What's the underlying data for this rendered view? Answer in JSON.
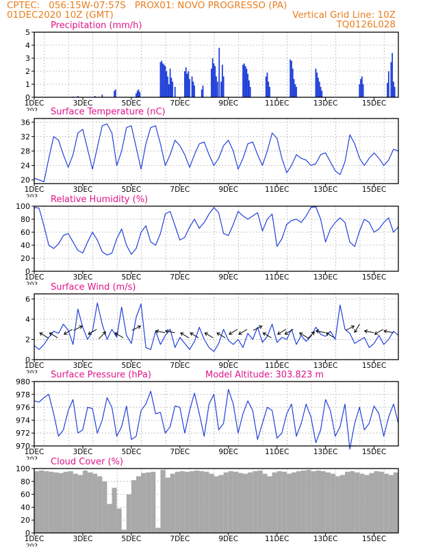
{
  "header": {
    "line1_left": "CPTEC:   056:15W-07:57S   PROX01: NOVO PROGRESSO (PA)",
    "line2_left": "01DEC2020 10Z (GMT)",
    "line2_right": "Vertical Grid Line: 10Z",
    "line3_right": "TQ0126L028",
    "model_altitude": "Model Altitude: 303.823 m"
  },
  "colors": {
    "header": "#e87d1e",
    "title": "#e0148a",
    "series": "#1f3fd8",
    "bars": "#1f3fd8",
    "cloud": "#a9a9a9",
    "grid": "#9a9a9a"
  },
  "x_axis": {
    "start_day": 1,
    "end_day": 16,
    "ticks": [
      {
        "day": 1,
        "label": "1DEC"
      },
      {
        "day": 3,
        "label": "3DEC"
      },
      {
        "day": 5,
        "label": "5DEC"
      },
      {
        "day": 7,
        "label": "7DEC"
      },
      {
        "day": 9,
        "label": "9DEC"
      },
      {
        "day": 11,
        "label": "11DEC"
      },
      {
        "day": 13,
        "label": "13DEC"
      },
      {
        "day": 15,
        "label": "15DEC"
      }
    ],
    "year_stub": "202"
  },
  "chart_data": [
    {
      "id": "precip",
      "type": "bar",
      "title": "Precipitation (mm/h)",
      "ylim": [
        0,
        5
      ],
      "yticks": [
        0,
        1,
        2,
        3,
        4,
        5
      ],
      "x_unit": "day of December",
      "bars": [
        [
          2.6,
          0.05
        ],
        [
          2.8,
          0.1
        ],
        [
          3.5,
          0.1
        ],
        [
          3.8,
          0.2
        ],
        [
          4.3,
          0.5
        ],
        [
          4.35,
          0.6
        ],
        [
          5.2,
          0.3
        ],
        [
          5.25,
          0.5
        ],
        [
          5.3,
          0.6
        ],
        [
          5.35,
          0.4
        ],
        [
          6.2,
          2.7
        ],
        [
          6.25,
          2.8
        ],
        [
          6.3,
          2.6
        ],
        [
          6.35,
          2.5
        ],
        [
          6.4,
          2.4
        ],
        [
          6.45,
          2.0
        ],
        [
          6.5,
          1.6
        ],
        [
          6.55,
          1.0
        ],
        [
          6.6,
          2.2
        ],
        [
          6.65,
          1.5
        ],
        [
          6.7,
          1.2
        ],
        [
          6.8,
          0.8
        ],
        [
          7.2,
          2.0
        ],
        [
          7.25,
          2.3
        ],
        [
          7.3,
          1.8
        ],
        [
          7.35,
          2.0
        ],
        [
          7.4,
          1.4
        ],
        [
          7.5,
          1.6
        ],
        [
          7.55,
          1.2
        ],
        [
          7.6,
          0.9
        ],
        [
          7.9,
          0.6
        ],
        [
          7.95,
          0.9
        ],
        [
          8.3,
          2.2
        ],
        [
          8.35,
          3.0
        ],
        [
          8.4,
          2.6
        ],
        [
          8.45,
          2.4
        ],
        [
          8.5,
          1.6
        ],
        [
          8.55,
          1.2
        ],
        [
          8.62,
          3.8
        ],
        [
          8.7,
          1.2
        ],
        [
          8.75,
          2.5
        ],
        [
          8.8,
          1.6
        ],
        [
          9.6,
          2.5
        ],
        [
          9.65,
          2.6
        ],
        [
          9.7,
          2.4
        ],
        [
          9.75,
          2.2
        ],
        [
          9.8,
          1.8
        ],
        [
          9.85,
          1.3
        ],
        [
          9.9,
          0.8
        ],
        [
          10.55,
          1.6
        ],
        [
          10.6,
          1.9
        ],
        [
          10.65,
          1.2
        ],
        [
          10.7,
          0.8
        ],
        [
          11.55,
          2.9
        ],
        [
          11.6,
          2.8
        ],
        [
          11.65,
          2.2
        ],
        [
          11.7,
          1.4
        ],
        [
          11.75,
          1.0
        ],
        [
          11.8,
          0.8
        ],
        [
          12.6,
          2.2
        ],
        [
          12.65,
          1.9
        ],
        [
          12.7,
          1.5
        ],
        [
          12.75,
          1.2
        ],
        [
          12.8,
          0.8
        ],
        [
          12.85,
          0.5
        ],
        [
          14.4,
          1.0
        ],
        [
          14.45,
          1.4
        ],
        [
          14.5,
          1.6
        ],
        [
          14.55,
          1.0
        ],
        [
          15.55,
          1.1
        ],
        [
          15.6,
          2.0
        ],
        [
          15.7,
          2.7
        ],
        [
          15.75,
          3.4
        ],
        [
          15.8,
          1.2
        ],
        [
          15.85,
          0.8
        ]
      ]
    },
    {
      "id": "temp",
      "type": "line",
      "title": "Surface Temperature (nC)",
      "ylim": [
        19,
        37
      ],
      "yticks": [
        20,
        24,
        28,
        32,
        36
      ],
      "x": [
        1.0,
        1.2,
        1.4,
        1.6,
        1.8,
        2.0,
        2.2,
        2.4,
        2.6,
        2.8,
        3.0,
        3.2,
        3.4,
        3.6,
        3.8,
        4.0,
        4.2,
        4.4,
        4.6,
        4.8,
        5.0,
        5.2,
        5.4,
        5.6,
        5.8,
        6.0,
        6.2,
        6.4,
        6.6,
        6.8,
        7.0,
        7.2,
        7.4,
        7.6,
        7.8,
        8.0,
        8.2,
        8.4,
        8.6,
        8.8,
        9.0,
        9.2,
        9.4,
        9.6,
        9.8,
        10.0,
        10.2,
        10.4,
        10.6,
        10.8,
        11.0,
        11.2,
        11.4,
        11.6,
        11.8,
        12.0,
        12.2,
        12.4,
        12.6,
        12.8,
        13.0,
        13.2,
        13.4,
        13.6,
        13.8,
        14.0,
        14.2,
        14.4,
        14.6,
        14.8,
        15.0,
        15.2,
        15.4,
        15.6,
        15.8,
        16.0
      ],
      "values": [
        20.5,
        20.0,
        19.5,
        26.0,
        32.0,
        31.0,
        27.0,
        23.5,
        27.0,
        33.0,
        34.0,
        28.5,
        23.0,
        29.0,
        35.0,
        35.5,
        33.0,
        24.0,
        28.0,
        34.5,
        35.0,
        29.0,
        23.0,
        30.0,
        34.5,
        35.0,
        30.0,
        24.0,
        27.0,
        31.0,
        29.5,
        27.0,
        23.5,
        27.0,
        30.0,
        30.5,
        27.0,
        24.0,
        26.0,
        29.5,
        31.0,
        28.0,
        23.0,
        26.0,
        30.0,
        30.5,
        27.0,
        24.0,
        28.0,
        33.0,
        31.5,
        26.0,
        22.0,
        24.0,
        27.0,
        26.0,
        25.5,
        24.0,
        24.5,
        27.0,
        27.5,
        25.0,
        22.5,
        21.5,
        25.0,
        32.5,
        30.0,
        26.0,
        24.0,
        26.0,
        27.5,
        26.0,
        24.0,
        25.5,
        28.5,
        28.0
      ]
    },
    {
      "id": "rh",
      "type": "line",
      "title": "Relative Humidity (%)",
      "ylim": [
        0,
        100
      ],
      "yticks": [
        0,
        20,
        40,
        60,
        80,
        100
      ],
      "x": [
        1.0,
        1.2,
        1.4,
        1.6,
        1.8,
        2.0,
        2.2,
        2.4,
        2.6,
        2.8,
        3.0,
        3.2,
        3.4,
        3.6,
        3.8,
        4.0,
        4.2,
        4.4,
        4.6,
        4.8,
        5.0,
        5.2,
        5.4,
        5.6,
        5.8,
        6.0,
        6.2,
        6.4,
        6.6,
        6.8,
        7.0,
        7.2,
        7.4,
        7.6,
        7.8,
        8.0,
        8.2,
        8.4,
        8.6,
        8.8,
        9.0,
        9.2,
        9.4,
        9.6,
        9.8,
        10.0,
        10.2,
        10.4,
        10.6,
        10.8,
        11.0,
        11.2,
        11.4,
        11.6,
        11.8,
        12.0,
        12.2,
        12.4,
        12.6,
        12.8,
        13.0,
        13.2,
        13.4,
        13.6,
        13.8,
        14.0,
        14.2,
        14.4,
        14.6,
        14.8,
        15.0,
        15.2,
        15.4,
        15.6,
        15.8,
        16.0
      ],
      "values": [
        98.0,
        97.0,
        70.0,
        40.0,
        35.0,
        42.0,
        55.0,
        58.0,
        45.0,
        32.0,
        28.0,
        45.0,
        60.0,
        48.0,
        30.0,
        25.0,
        28.0,
        50.0,
        65.0,
        40.0,
        26.0,
        35.0,
        60.0,
        70.0,
        45.0,
        40.0,
        58.0,
        88.0,
        92.0,
        70.0,
        48.0,
        52.0,
        68.0,
        80.0,
        66.0,
        75.0,
        88.0,
        98.0,
        90.0,
        58.0,
        55.0,
        72.0,
        92.0,
        85.0,
        80.0,
        85.0,
        90.0,
        62.0,
        80.0,
        88.0,
        38.0,
        50.0,
        72.0,
        78.0,
        80.0,
        75.0,
        85.0,
        98.0,
        99.0,
        80.0,
        45.0,
        65.0,
        75.0,
        82.0,
        75.0,
        45.0,
        38.0,
        62.0,
        80.0,
        75.0,
        60.0,
        65.0,
        75.0,
        82.0,
        60.0,
        68.0
      ]
    },
    {
      "id": "wind",
      "type": "line",
      "title": "Surface Wind (m/s)",
      "ylim": [
        0,
        6.5
      ],
      "yticks": [
        0,
        2,
        4,
        6
      ],
      "x": [
        1.0,
        1.2,
        1.4,
        1.6,
        1.8,
        2.0,
        2.2,
        2.4,
        2.6,
        2.8,
        3.0,
        3.2,
        3.4,
        3.6,
        3.8,
        4.0,
        4.2,
        4.4,
        4.6,
        4.8,
        5.0,
        5.2,
        5.4,
        5.6,
        5.8,
        6.0,
        6.2,
        6.4,
        6.6,
        6.8,
        7.0,
        7.2,
        7.4,
        7.6,
        7.8,
        8.0,
        8.2,
        8.4,
        8.6,
        8.8,
        9.0,
        9.2,
        9.4,
        9.6,
        9.8,
        10.0,
        10.2,
        10.4,
        10.6,
        10.8,
        11.0,
        11.2,
        11.4,
        11.6,
        11.8,
        12.0,
        12.2,
        12.4,
        12.6,
        12.8,
        13.0,
        13.2,
        13.4,
        13.6,
        13.8,
        14.0,
        14.2,
        14.4,
        14.6,
        14.8,
        15.0,
        15.2,
        15.4,
        15.6,
        15.8,
        16.0
      ],
      "values": [
        1.4,
        1.0,
        1.5,
        2.2,
        2.8,
        2.6,
        3.5,
        2.9,
        1.5,
        5.0,
        3.2,
        2.0,
        2.8,
        5.6,
        3.5,
        2.0,
        3.0,
        2.2,
        5.2,
        2.4,
        1.6,
        4.2,
        5.5,
        1.2,
        1.0,
        2.8,
        1.5,
        2.4,
        3.0,
        1.2,
        2.2,
        1.6,
        1.0,
        1.8,
        3.2,
        2.0,
        1.2,
        0.8,
        1.6,
        3.0,
        1.9,
        1.5,
        2.0,
        1.2,
        2.6,
        2.0,
        3.2,
        1.7,
        2.3,
        3.5,
        1.7,
        2.2,
        2.0,
        3.0,
        1.5,
        2.4,
        1.8,
        2.3,
        3.2,
        2.5,
        2.3,
        2.8,
        2.0,
        5.4,
        3.0,
        2.6,
        1.6,
        1.9,
        2.2,
        1.2,
        1.6,
        2.4,
        1.5,
        2.0,
        2.8,
        2.4
      ],
      "arrows": [
        [
          1.4,
          0
        ],
        [
          1.8,
          0
        ],
        [
          2.4,
          1
        ],
        [
          2.8,
          2
        ],
        [
          3.4,
          1
        ],
        [
          3.8,
          3
        ],
        [
          4.5,
          0
        ],
        [
          5.2,
          2
        ],
        [
          6.2,
          4
        ],
        [
          6.6,
          4
        ],
        [
          7.2,
          0
        ],
        [
          7.6,
          0
        ],
        [
          8.2,
          0
        ],
        [
          8.7,
          0
        ],
        [
          9.2,
          1
        ],
        [
          9.6,
          1
        ],
        [
          10.2,
          2
        ],
        [
          10.6,
          0
        ],
        [
          11.2,
          1
        ],
        [
          11.5,
          1
        ],
        [
          12.1,
          0
        ],
        [
          12.4,
          3
        ],
        [
          12.8,
          4
        ],
        [
          13.2,
          0
        ],
        [
          14.0,
          2
        ],
        [
          14.3,
          5
        ],
        [
          14.8,
          4
        ],
        [
          15.2,
          1
        ],
        [
          15.6,
          4
        ]
      ]
    },
    {
      "id": "pressure",
      "type": "line",
      "title": "Surface Pressure (hPa)",
      "ylim": [
        970,
        980
      ],
      "yticks": [
        970,
        972,
        974,
        976,
        978,
        980
      ],
      "x": [
        1.0,
        1.2,
        1.4,
        1.6,
        1.8,
        2.0,
        2.2,
        2.4,
        2.6,
        2.8,
        3.0,
        3.2,
        3.4,
        3.6,
        3.8,
        4.0,
        4.2,
        4.4,
        4.6,
        4.8,
        5.0,
        5.2,
        5.4,
        5.6,
        5.8,
        6.0,
        6.2,
        6.4,
        6.6,
        6.8,
        7.0,
        7.2,
        7.4,
        7.6,
        7.8,
        8.0,
        8.2,
        8.4,
        8.6,
        8.8,
        9.0,
        9.2,
        9.4,
        9.6,
        9.8,
        10.0,
        10.2,
        10.4,
        10.6,
        10.8,
        11.0,
        11.2,
        11.4,
        11.6,
        11.8,
        12.0,
        12.2,
        12.4,
        12.6,
        12.8,
        13.0,
        13.2,
        13.4,
        13.6,
        13.8,
        14.0,
        14.2,
        14.4,
        14.6,
        14.8,
        15.0,
        15.2,
        15.4,
        15.6,
        15.8,
        16.0
      ],
      "values": [
        977.0,
        976.8,
        977.5,
        978.0,
        975.0,
        971.5,
        972.5,
        975.5,
        977.2,
        972.0,
        972.5,
        976.0,
        975.8,
        972.0,
        974.0,
        977.5,
        976.0,
        971.5,
        973.0,
        976.2,
        971.0,
        971.5,
        975.5,
        976.5,
        978.5,
        975.0,
        975.2,
        972.0,
        973.0,
        976.2,
        976.0,
        972.0,
        975.5,
        978.2,
        975.0,
        971.5,
        976.5,
        978.0,
        972.5,
        973.5,
        978.8,
        976.5,
        972.0,
        975.0,
        977.0,
        975.5,
        971.0,
        973.5,
        976.0,
        975.5,
        971.2,
        972.0,
        975.0,
        976.5,
        971.5,
        973.5,
        976.5,
        974.5,
        970.5,
        972.5,
        977.2,
        975.5,
        971.5,
        973.0,
        976.5,
        969.5,
        973.5,
        976.0,
        972.5,
        973.5,
        976.2,
        975.0,
        971.5,
        974.5,
        976.5,
        973.5
      ]
    },
    {
      "id": "cloud",
      "type": "area",
      "title": "Cloud Cover (%)",
      "ylim": [
        0,
        100
      ],
      "yticks": [
        0,
        20,
        40,
        60,
        80,
        100
      ],
      "x": [
        1.0,
        1.2,
        1.4,
        1.6,
        1.8,
        2.0,
        2.2,
        2.4,
        2.6,
        2.8,
        3.0,
        3.2,
        3.4,
        3.6,
        3.8,
        4.0,
        4.2,
        4.4,
        4.6,
        4.8,
        5.0,
        5.2,
        5.4,
        5.6,
        5.8,
        6.0,
        6.2,
        6.4,
        6.6,
        6.8,
        7.0,
        7.2,
        7.4,
        7.6,
        7.8,
        8.0,
        8.2,
        8.4,
        8.6,
        8.8,
        9.0,
        9.2,
        9.4,
        9.6,
        9.8,
        10.0,
        10.2,
        10.4,
        10.6,
        10.8,
        11.0,
        11.2,
        11.4,
        11.6,
        11.8,
        12.0,
        12.2,
        12.4,
        12.6,
        12.8,
        13.0,
        13.2,
        13.4,
        13.6,
        13.8,
        14.0,
        14.2,
        14.4,
        14.6,
        14.8,
        15.0,
        15.2,
        15.4,
        15.6,
        15.8,
        16.0
      ],
      "values": [
        96,
        97,
        96,
        95,
        94,
        93,
        95,
        96,
        92,
        90,
        97,
        94,
        92,
        88,
        80,
        45,
        70,
        38,
        5,
        60,
        82,
        88,
        93,
        94,
        95,
        8,
        98,
        86,
        92,
        95,
        96,
        95,
        96,
        97,
        96,
        95,
        92,
        88,
        90,
        94,
        96,
        95,
        93,
        92,
        94,
        96,
        97,
        92,
        88,
        94,
        96,
        95,
        92,
        94,
        96,
        97,
        98,
        96,
        97,
        96,
        94,
        92,
        88,
        90,
        95,
        96,
        94,
        92,
        90,
        93,
        96,
        95,
        92,
        90,
        94,
        95
      ]
    }
  ]
}
